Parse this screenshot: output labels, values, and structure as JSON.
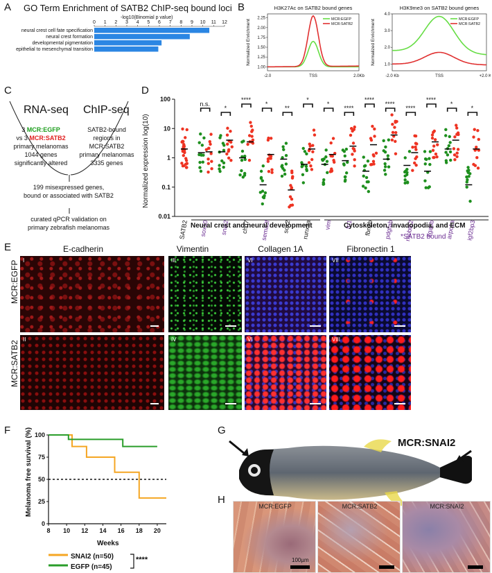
{
  "panels": {
    "A": {
      "letter": "A",
      "title": "GO Term Enrichment of SATB2 ChIP-seq bound loci",
      "axis_label": "-log10(Binomial p value)",
      "ticks": [
        "0",
        "1",
        "2",
        "3",
        "4",
        "5",
        "6",
        "7",
        "8",
        "9",
        "10",
        "11",
        "12"
      ],
      "bar_color": "#2b86e3"
    },
    "B": {
      "letter": "B",
      "left_title": "H3K27Ac on SATB2 bound genes",
      "right_title": "H3K9me3 on SATB2 bound genes",
      "ylabel": "Normalized Enrichment",
      "left_xticks": [
        "-2.0",
        "TSS",
        "2.0Kb"
      ],
      "right_xticks": [
        "-2.0 Kb",
        "TSS",
        "+2.0 Kb"
      ],
      "left_yticks": [
        "1.00",
        "1.25",
        "1.50",
        "1.75",
        "2.00",
        "2.25"
      ],
      "right_yticks": [
        "1.0",
        "2.0",
        "3.0",
        "4.0"
      ],
      "legend_egfp": "MCR:EGFP",
      "legend_satb2": "MCR:SATB2",
      "egfp_color": "#66dd44",
      "satb2_color": "#e03030"
    },
    "C": {
      "letter": "C",
      "rnaseq": "RNA-seq",
      "chipseq": "ChIP-seq",
      "rna_prefix": "3 ",
      "rna_egfp": "MCR:EGFP",
      "rna_vs": "vs 3 ",
      "rna_satb2": "MCR:SATB2",
      "rna_line3": "primary melanomas",
      "rna_line4": "1044 genes",
      "rna_line5": "significantly altered",
      "chip_line1": "SATB2-bound",
      "chip_line2": "regions in MCR:SATB2",
      "chip_line3": "primary melanomas",
      "chip_line4": "3335 genes",
      "mid_line1": "199 misexpressed genes,",
      "mid_line2": "bound or associated with SATB2",
      "bot_line1": "curated qPCR validation on",
      "bot_line2": "primary zebrafish melanomas"
    },
    "D": {
      "letter": "D",
      "ylabel": "Normalized expression log(10)",
      "group1": "Neural crest and neural development",
      "group2": "Cytoskeleton, invadopodia, and ECM",
      "footnote": "*SATB2 bound",
      "satb2_bound_color": "#6a2c91"
    },
    "E": {
      "letter": "E",
      "col1": "E-cadherin",
      "col2": "Vimentin",
      "col3": "Collagen 1A",
      "col4": "Fibronectin 1",
      "row1": "MCR:EGFP",
      "row2": "MCR:SATB2",
      "numerals_top": [
        "I",
        "III",
        "VI",
        "VII"
      ],
      "numerals_bottom": [
        "II",
        "IV",
        "VI",
        "VIII"
      ]
    },
    "F": {
      "letter": "F",
      "ylabel": "Melanoma free survival (%)",
      "xlabel": "Weeks",
      "legend_snai2": "SNAI2 (n=50)",
      "legend_egfp": "EGFP (n=45)",
      "significance": "****",
      "snai2_color": "#f5a623",
      "egfp_color": "#2a9d2a"
    },
    "G": {
      "letter": "G",
      "label": "MCR:SNAI2"
    },
    "H": {
      "letter": "H",
      "labels": [
        "MCR:EGFP",
        "MCR:SATB2",
        "MCR:SNAI2"
      ],
      "scale": "100µm"
    }
  },
  "chart_data": [
    {
      "type": "bar",
      "title": "GO Term Enrichment of SATB2 ChIP-seq bound loci",
      "xlabel": "-log10(Binomial p value)",
      "xlim": [
        0,
        12
      ],
      "categories": [
        "neural crest cell fate specification",
        "neural crest formation",
        "developmental pigmentation",
        "epithelial to mesenchymal transition"
      ],
      "values": [
        10.6,
        8.8,
        6.2,
        5.9
      ]
    },
    {
      "type": "line",
      "title": "H3K27Ac on SATB2 bound genes",
      "ylabel": "Normalized Enrichment",
      "ylim": [
        0.9,
        2.35
      ],
      "x": [
        "-2.0",
        "TSS",
        "2.0Kb"
      ],
      "series": [
        {
          "name": "MCR:EGFP",
          "values": [
            1.0,
            1.65,
            1.0
          ]
        },
        {
          "name": "MCR:SATB2",
          "values": [
            1.0,
            2.3,
            1.02
          ]
        }
      ]
    },
    {
      "type": "line",
      "title": "H3K9me3 on SATB2 bound genes",
      "ylabel": "Normalized Enrichment",
      "ylim": [
        0.6,
        4.0
      ],
      "x": [
        "-2.0 Kb",
        "TSS",
        "+2.0 Kb"
      ],
      "series": [
        {
          "name": "MCR:EGFP",
          "values": [
            1.8,
            3.85,
            1.55
          ]
        },
        {
          "name": "MCR:SATB2",
          "values": [
            1.0,
            1.7,
            0.95
          ]
        }
      ]
    },
    {
      "type": "scatter",
      "ylabel": "Normalized expression log(10)",
      "yscale": "log",
      "yticks": [
        "0.01",
        "0.1",
        "1",
        "10",
        "100"
      ],
      "categories": [
        "SATB2",
        "sox10",
        "snai2",
        "chd7",
        "sema3f",
        "sox2",
        "runx2a",
        "vim",
        "fn1",
        "fbn2b",
        "pdgfab",
        "rhobtb2",
        "itga6b",
        "arpc1a",
        "igf2bp3"
      ],
      "satb2_bound": [
        "sox10",
        "snai2",
        "sema3f",
        "vim",
        "fn1",
        "pdgfab",
        "rhobtb2",
        "itga6b",
        "arpc1a",
        "igf2bp3"
      ],
      "significance": [
        "",
        "n.s.",
        "*",
        "****",
        "*",
        "**",
        "*",
        "*",
        "****",
        "****",
        "****",
        "****",
        "****",
        "*",
        "*"
      ],
      "series": [
        {
          "name": "MCR:EGFP",
          "values": [
            null,
            1.5,
            1.6,
            1.0,
            0.12,
            0.9,
            0.6,
            0.6,
            0.8,
            0.35,
            0.9,
            0.55,
            0.35,
            2.0,
            0.12
          ]
        },
        {
          "name": "MCR:SATB2",
          "values": [
            2.0,
            1.6,
            4.0,
            3.5,
            1.3,
            0.08,
            2.0,
            1.3,
            2.5,
            2.8,
            6.0,
            1.5,
            3.5,
            4.0,
            2.0
          ]
        }
      ]
    },
    {
      "type": "line",
      "ylabel": "Melanoma free survival (%)",
      "xlabel": "Weeks",
      "xlim": [
        8,
        21
      ],
      "ylim": [
        0,
        100
      ],
      "xticks": [
        "8",
        "10",
        "12",
        "14",
        "16",
        "18",
        "20"
      ],
      "yticks": [
        "0",
        "25",
        "50",
        "75",
        "100"
      ],
      "series": [
        {
          "name": "SNAI2 (n=50)",
          "x": [
            8,
            10.6,
            10.6,
            12.2,
            12.2,
            15.3,
            15.3,
            18.0,
            18.0,
            21.0
          ],
          "values": [
            100,
            100,
            87,
            87,
            75,
            75,
            58,
            58,
            29,
            29
          ]
        },
        {
          "name": "EGFP (n=45)",
          "x": [
            8,
            10.2,
            10.2,
            16.2,
            16.2,
            20.0
          ],
          "values": [
            100,
            100,
            95,
            95,
            87,
            87
          ]
        }
      ],
      "reference_line": 50
    }
  ]
}
